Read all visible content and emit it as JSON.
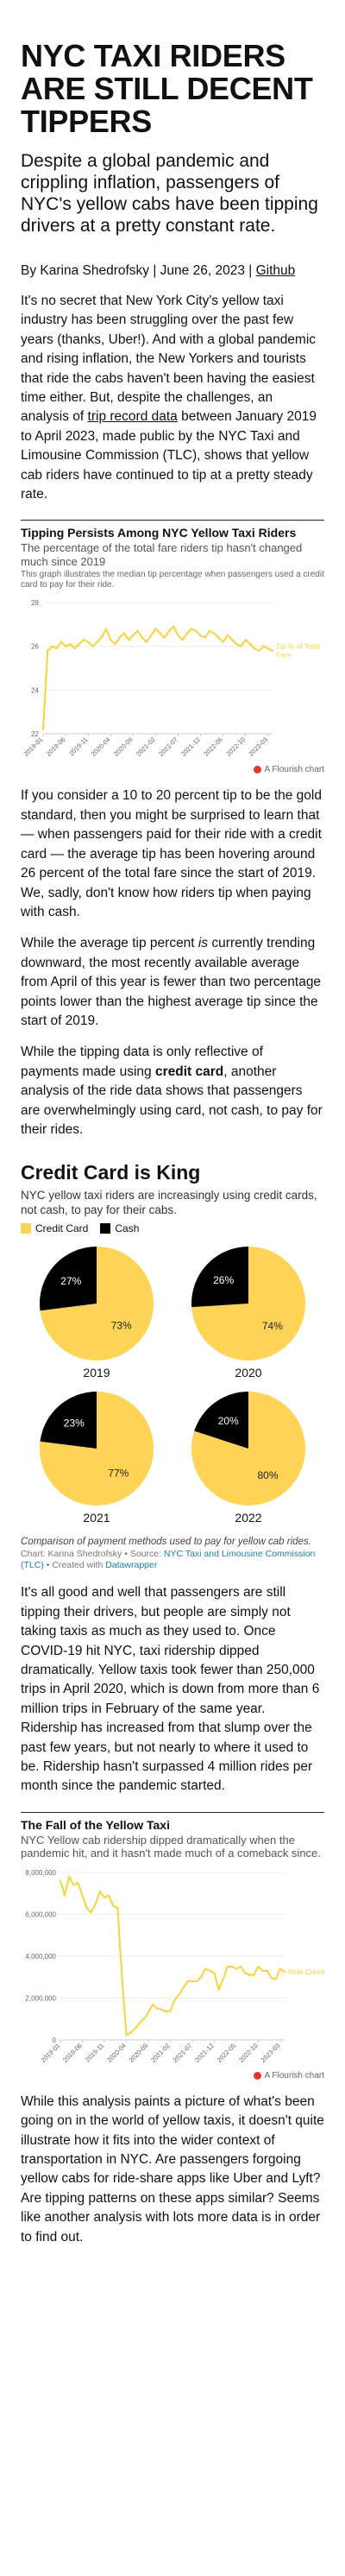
{
  "article": {
    "headline": "NYC Taxi Riders Are Still Decent Tippers",
    "dek": "Despite a global pandemic and crippling inflation, passengers of NYC's yellow cabs have been tipping drivers at a pretty constant rate.",
    "byline": {
      "prefix": "By Karina Shedrofsky | June 26, 2023 | ",
      "github_label": "Github"
    },
    "p1": {
      "before": "It's no secret that New York City's yellow taxi industry has been struggling over the past few years (thanks, Uber!). And with a global pandemic and rising inflation, the New Yorkers and tourists that ride the cabs haven't been having the easiest time either. But, despite the challenges, an analysis of ",
      "link": "trip record data",
      "after": " between January 2019 to April 2023, made public by the NYC Taxi and Limousine Commission (TLC), shows that yellow cab riders have continued to tip at a pretty steady rate."
    },
    "p2": "If you consider a 10 to 20 percent tip to be the gold standard, then you might be surprised to learn that — when passengers paid for their ride with a credit card — the average tip has been hovering around 26 percent of the total fare since the start of 2019. We, sadly, don't know how riders tip when paying with cash.",
    "p3": {
      "before": "While the average tip percent ",
      "em": "is",
      "after": " currently trending downward, the most recently available average from April of this year is fewer than two percentage points lower than the highest average tip since the start of 2019."
    },
    "p4": {
      "before": "While the tipping data is only reflective of payments made using ",
      "strong": "credit card",
      "after": ", another analysis of the ride data shows that passengers are overwhelmingly using card, not cash, to pay for their rides."
    },
    "p5": "It's all good and well that passengers are still tipping their drivers, but people are simply not taking taxis as much as they used to. Once COVID-19 hit NYC, taxi ridership dipped dramatically. Yellow taxis took fewer than 250,000 trips in April 2020, which is down from more than 6 million trips in February of the same year. Ridership has increased from that slump over the past few years, but not nearly to where it used to be. Ridership hasn't surpassed 4 million rides per month since the pandemic started.",
    "p6": "While this analysis paints a picture of what's been going on in the world of yellow taxis, it doesn't quite illustrate how it fits into the wider context of transportation in NYC. Are passengers forgoing yellow cabs for ride-share apps like Uber and Lyft? Are tipping patterns on these apps similar? Seems like another analysis with lots more data is in order to find out."
  },
  "tip_chart": {
    "title": "Tipping Persists Among NYC Yellow Taxi Riders",
    "subtitle": "The percentage of the total fare riders tip hasn't changed much since 2019",
    "note": "This graph illustrates the median tip percentage when passengers used a credit card to pay for their ride.",
    "credit": "A Flourish chart",
    "series_label": "Tip % of Total Fare",
    "colors": {
      "line": "#f7d33c",
      "axis": "#cccccc",
      "text": "#666666"
    }
  },
  "pie_section": {
    "title": "Credit Card is King",
    "subtitle": "NYC yellow taxi riders are increasingly using credit cards, not cash, to pay for their cabs.",
    "legend": [
      {
        "label": "Credit Card",
        "color": "#fed457"
      },
      {
        "label": "Cash",
        "color": "#000000"
      }
    ],
    "caption": "Comparison of payment methods used to pay for yellow cab rides.",
    "source": {
      "prefix": "Chart: Karina Shedrofsky • Source: ",
      "source_link": "NYC Taxi and Limousine Commission (TLC)",
      "middle": " • Created with ",
      "tool_link": "Datawrapper"
    }
  },
  "ride_chart": {
    "title": "The Fall of the Yellow Taxi",
    "subtitle": "NYC Yellow cab ridership dipped dramatically when the pandemic hit, and it hasn't made much of a comeback since.",
    "credit": "A Flourish chart",
    "series_label": "Ride Count",
    "colors": {
      "line": "#f7d33c",
      "axis": "#cccccc",
      "text": "#666666"
    }
  },
  "chart_data": [
    {
      "type": "line",
      "title": "Tipping Persists Among NYC Yellow Taxi Riders",
      "subtitle": "The percentage of the total fare riders tip hasn't changed much since 2019",
      "series": [
        {
          "name": "Tip % of Total Fare",
          "values": [
            22.2,
            25.8,
            26.0,
            25.9,
            26.2,
            26.0,
            26.1,
            25.9,
            26.1,
            26.3,
            26.2,
            26.0,
            26.2,
            26.4,
            26.8,
            26.3,
            26.1,
            26.4,
            26.6,
            26.3,
            26.5,
            26.7,
            26.4,
            26.2,
            26.5,
            26.8,
            26.6,
            26.4,
            26.7,
            26.9,
            26.5,
            26.3,
            26.6,
            26.8,
            26.7,
            26.5,
            26.4,
            26.7,
            26.6,
            26.4,
            26.2,
            26.5,
            26.3,
            26.1,
            26.0,
            26.3,
            26.1,
            25.9,
            25.8,
            26.0,
            25.9,
            25.8
          ]
        }
      ],
      "x_start": "2019-01",
      "x_ticks": [
        "2019-01",
        "2019-06",
        "2019-11",
        "2020-04",
        "2020-09",
        "2021-02",
        "2021-07",
        "2021-12",
        "2022-05",
        "2022-10",
        "2023-03"
      ],
      "ylim": [
        22,
        28
      ],
      "yticks": [
        22,
        24,
        26,
        28
      ]
    },
    {
      "type": "pie",
      "title": "Credit Card is King",
      "categories": [
        "Credit Card",
        "Cash"
      ],
      "series": [
        {
          "name": "2019",
          "values": [
            73,
            27
          ]
        },
        {
          "name": "2020",
          "values": [
            74,
            26
          ]
        },
        {
          "name": "2021",
          "values": [
            77,
            23
          ]
        },
        {
          "name": "2022",
          "values": [
            80,
            20
          ]
        }
      ]
    },
    {
      "type": "line",
      "title": "The Fall of the Yellow Taxi",
      "subtitle": "NYC Yellow cab ridership dipped dramatically when the pandemic hit, and it hasn't made much of a comeback since.",
      "series": [
        {
          "name": "Ride Count",
          "values": [
            7600000,
            6900000,
            7800000,
            7400000,
            7500000,
            6900000,
            6300000,
            6100000,
            6500000,
            7100000,
            6800000,
            6900000,
            6400000,
            6300000,
            3000000,
            240000,
            350000,
            550000,
            800000,
            1000000,
            1300000,
            1700000,
            1500000,
            1450000,
            1350000,
            1380000,
            1900000,
            2150000,
            2500000,
            2800000,
            2800000,
            2800000,
            3000000,
            3400000,
            3300000,
            3200000,
            2400000,
            2900000,
            3500000,
            3500000,
            3400000,
            3500000,
            3200000,
            3100000,
            3100000,
            3500000,
            3300000,
            3300000,
            2950000,
            2900000,
            3400000,
            3250000
          ]
        }
      ],
      "x_start": "2019-01",
      "x_ticks": [
        "2019-01",
        "2019-06",
        "2019-11",
        "2020-04",
        "2020-09",
        "2021-02",
        "2021-07",
        "2021-12",
        "2022-05",
        "2022-10",
        "2023-03"
      ],
      "ylim": [
        0,
        8000000
      ],
      "yticks": [
        "0",
        "2,000,000",
        "4,000,000",
        "6,000,000",
        "8,000,000"
      ]
    }
  ]
}
